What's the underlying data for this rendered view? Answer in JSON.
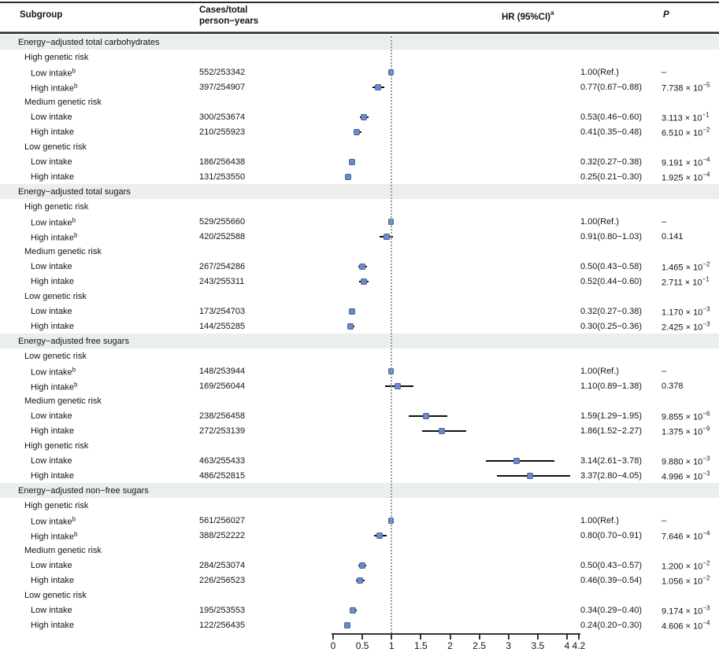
{
  "header": {
    "subgroup": "Subgroup",
    "cases_line1": "Cases/total",
    "cases_line2": "person−years",
    "hr": "HR (95%CI)",
    "hr_superscript": "a",
    "p": "P"
  },
  "chart_data": {
    "type": "scatter",
    "subtype": "forest-plot",
    "title": "",
    "xlabel": "",
    "x_range": [
      0,
      4.2
    ],
    "x_axis_ticks": [
      0,
      0.5,
      1,
      1.5,
      2,
      2.5,
      3,
      3.5,
      4,
      4.2
    ],
    "reference_line_x": 1,
    "grid": false,
    "marker_color": "#6b8ac6",
    "ci_color": "#0f0f0f",
    "section_band_color": "#ebefeb",
    "rows": [
      {
        "type": "section",
        "label": "Energy−adjusted total carbohydrates"
      },
      {
        "type": "group",
        "label": "High genetic risk"
      },
      {
        "type": "data",
        "label": "Low intake",
        "sup": "b",
        "cases": "552/253342",
        "est": 1.0,
        "lo": null,
        "hi": null,
        "ref": true,
        "hr_text": "1.00(Ref.)",
        "p": "–",
        "p_exp": null
      },
      {
        "type": "data",
        "label": "High intake",
        "sup": "b",
        "cases": "397/254907",
        "est": 0.77,
        "lo": 0.67,
        "hi": 0.88,
        "ref": false,
        "hr_text": "0.77(0.67−0.88)",
        "p": "7.738 × 10",
        "p_exp": "−5"
      },
      {
        "type": "group",
        "label": "Medium genetic risk"
      },
      {
        "type": "data",
        "label": "Low intake",
        "sup": null,
        "cases": "300/253674",
        "est": 0.53,
        "lo": 0.46,
        "hi": 0.6,
        "ref": false,
        "hr_text": "0.53(0.46−0.60)",
        "p": "3.113 × 10",
        "p_exp": "−1"
      },
      {
        "type": "data",
        "label": "High intake",
        "sup": null,
        "cases": "210/255923",
        "est": 0.41,
        "lo": 0.35,
        "hi": 0.48,
        "ref": false,
        "hr_text": "0.41(0.35−0.48)",
        "p": "6.510 × 10",
        "p_exp": "−2"
      },
      {
        "type": "group",
        "label": "Low genetic risk"
      },
      {
        "type": "data",
        "label": "Low intake",
        "sup": null,
        "cases": "186/256438",
        "est": 0.32,
        "lo": 0.27,
        "hi": 0.38,
        "ref": false,
        "hr_text": "0.32(0.27−0.38)",
        "p": "9.191 × 10",
        "p_exp": "−4"
      },
      {
        "type": "data",
        "label": "High intake",
        "sup": null,
        "cases": "131/253550",
        "est": 0.25,
        "lo": 0.21,
        "hi": 0.3,
        "ref": false,
        "hr_text": "0.25(0.21−0.30)",
        "p": "1.925 × 10",
        "p_exp": "−4"
      },
      {
        "type": "section",
        "label": "Energy−adjusted total sugars"
      },
      {
        "type": "group",
        "label": "High genetic risk"
      },
      {
        "type": "data",
        "label": "Low intake",
        "sup": "b",
        "cases": "529/255660",
        "est": 1.0,
        "lo": null,
        "hi": null,
        "ref": true,
        "hr_text": "1.00(Ref.)",
        "p": "–",
        "p_exp": null
      },
      {
        "type": "data",
        "label": "High intake",
        "sup": "b",
        "cases": "420/252588",
        "est": 0.91,
        "lo": 0.8,
        "hi": 1.03,
        "ref": false,
        "hr_text": "0.91(0.80−1.03)",
        "p": "0.141",
        "p_exp": null
      },
      {
        "type": "group",
        "label": "Medium genetic risk"
      },
      {
        "type": "data",
        "label": "Low intake",
        "sup": null,
        "cases": "267/254286",
        "est": 0.5,
        "lo": 0.43,
        "hi": 0.58,
        "ref": false,
        "hr_text": "0.50(0.43−0.58)",
        "p": "1.465 × 10",
        "p_exp": "−2"
      },
      {
        "type": "data",
        "label": "High intake",
        "sup": null,
        "cases": "243/255311",
        "est": 0.52,
        "lo": 0.44,
        "hi": 0.6,
        "ref": false,
        "hr_text": "0.52(0.44−0.60)",
        "p": "2.711 × 10",
        "p_exp": "−1"
      },
      {
        "type": "group",
        "label": "Low genetic risk"
      },
      {
        "type": "data",
        "label": "Low intake",
        "sup": null,
        "cases": "173/254703",
        "est": 0.32,
        "lo": 0.27,
        "hi": 0.38,
        "ref": false,
        "hr_text": "0.32(0.27−0.38)",
        "p": "1.170 × 10",
        "p_exp": "−3"
      },
      {
        "type": "data",
        "label": "High intake",
        "sup": null,
        "cases": "144/255285",
        "est": 0.3,
        "lo": 0.25,
        "hi": 0.36,
        "ref": false,
        "hr_text": "0.30(0.25−0.36)",
        "p": "2.425 × 10",
        "p_exp": "−3"
      },
      {
        "type": "section",
        "label": "Energy−adjusted free sugars"
      },
      {
        "type": "group",
        "label": "Low genetic risk"
      },
      {
        "type": "data",
        "label": "Low intake",
        "sup": "b",
        "cases": "148/253944",
        "est": 1.0,
        "lo": null,
        "hi": null,
        "ref": true,
        "hr_text": "1.00(Ref.)",
        "p": "–",
        "p_exp": null
      },
      {
        "type": "data",
        "label": "High intake",
        "sup": "b",
        "cases": "169/256044",
        "est": 1.1,
        "lo": 0.89,
        "hi": 1.38,
        "ref": false,
        "hr_text": "1.10(0.89−1.38)",
        "p": "0.378",
        "p_exp": null
      },
      {
        "type": "group",
        "label": "Medium genetic risk"
      },
      {
        "type": "data",
        "label": "Low intake",
        "sup": null,
        "cases": "238/256458",
        "est": 1.59,
        "lo": 1.29,
        "hi": 1.95,
        "ref": false,
        "hr_text": "1.59(1.29−1.95)",
        "p": "9.855 × 10",
        "p_exp": "−6"
      },
      {
        "type": "data",
        "label": "High intake",
        "sup": null,
        "cases": "272/253139",
        "est": 1.86,
        "lo": 1.52,
        "hi": 2.27,
        "ref": false,
        "hr_text": "1.86(1.52−2.27)",
        "p": "1.375 × 10",
        "p_exp": "−9"
      },
      {
        "type": "group",
        "label": "High genetic risk"
      },
      {
        "type": "data",
        "label": "Low intake",
        "sup": null,
        "cases": "463/255433",
        "est": 3.14,
        "lo": 2.61,
        "hi": 3.78,
        "ref": false,
        "hr_text": "3.14(2.61−3.78)",
        "p": "9.880 × 10",
        "p_exp": "−3"
      },
      {
        "type": "data",
        "label": "High intake",
        "sup": null,
        "cases": "486/252815",
        "est": 3.37,
        "lo": 2.8,
        "hi": 4.05,
        "ref": false,
        "hr_text": "3.37(2.80−4.05)",
        "p": "4.996 × 10",
        "p_exp": "−3"
      },
      {
        "type": "section",
        "label": "Energy−adjusted non−free sugars"
      },
      {
        "type": "group",
        "label": "High genetic risk"
      },
      {
        "type": "data",
        "label": "Low intake",
        "sup": "b",
        "cases": "561/256027",
        "est": 1.0,
        "lo": null,
        "hi": null,
        "ref": true,
        "hr_text": "1.00(Ref.)",
        "p": "–",
        "p_exp": null
      },
      {
        "type": "data",
        "label": "High intake",
        "sup": "b",
        "cases": "388/252222",
        "est": 0.8,
        "lo": 0.7,
        "hi": 0.91,
        "ref": false,
        "hr_text": "0.80(0.70−0.91)",
        "p": "7.646 × 10",
        "p_exp": "−4"
      },
      {
        "type": "group",
        "label": "Medium genetic risk"
      },
      {
        "type": "data",
        "label": "Low intake",
        "sup": null,
        "cases": "284/253074",
        "est": 0.5,
        "lo": 0.43,
        "hi": 0.57,
        "ref": false,
        "hr_text": "0.50(0.43−0.57)",
        "p": "1.200 × 10",
        "p_exp": "−2"
      },
      {
        "type": "data",
        "label": "High intake",
        "sup": null,
        "cases": "226/256523",
        "est": 0.46,
        "lo": 0.39,
        "hi": 0.54,
        "ref": false,
        "hr_text": "0.46(0.39−0.54)",
        "p": "1.056 × 10",
        "p_exp": "−2"
      },
      {
        "type": "group",
        "label": "Low genetic risk"
      },
      {
        "type": "data",
        "label": "Low intake",
        "sup": null,
        "cases": "195/253553",
        "est": 0.34,
        "lo": 0.29,
        "hi": 0.4,
        "ref": false,
        "hr_text": "0.34(0.29−0.40)",
        "p": "9.174 × 10",
        "p_exp": "−3"
      },
      {
        "type": "data",
        "label": "High intake",
        "sup": null,
        "cases": "122/256435",
        "est": 0.24,
        "lo": 0.2,
        "hi": 0.3,
        "ref": false,
        "hr_text": "0.24(0.20−0.30)",
        "p": "4.606 × 10",
        "p_exp": "−4"
      }
    ]
  }
}
